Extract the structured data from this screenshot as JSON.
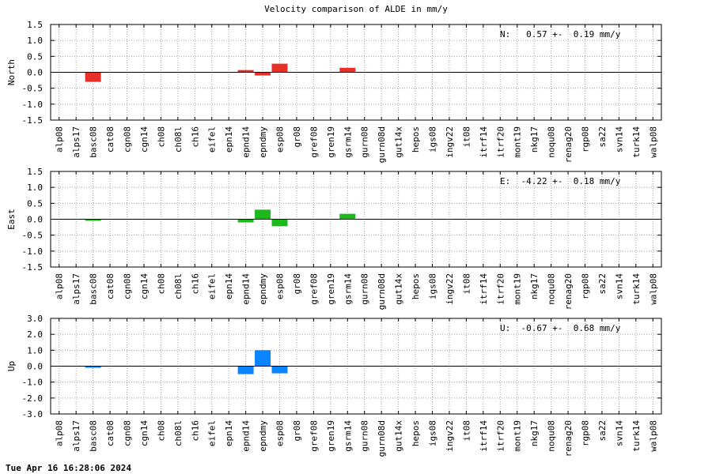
{
  "title": "Velocity comparison of ALDE in mm/y",
  "timestamp": "Tue Apr 16 16:28:06 2024",
  "chart_data": {
    "type": "bar",
    "categories": [
      "alp08",
      "alps17",
      "basc08",
      "cat08",
      "cgn08",
      "cgn14",
      "ch08",
      "ch08l",
      "ch16",
      "eifel",
      "epn14",
      "epnd14",
      "epndmy",
      "esp08",
      "gr08",
      "gref08",
      "gren19",
      "gsrm14",
      "gurn08",
      "gurn08d",
      "gut14x",
      "hepos",
      "igs08",
      "ingv22",
      "it08",
      "itrf14",
      "itrf20",
      "mont19",
      "nkg17",
      "noqu08",
      "renag20",
      "rgp08",
      "sa22",
      "svn14",
      "turk14",
      "walp08"
    ],
    "panels": [
      {
        "ylabel": "North",
        "ylim": [
          -1.5,
          1.5
        ],
        "yticks": [
          "1.5",
          "1.0",
          "0.5",
          "0.0",
          "-0.5",
          "-1.0",
          "-1.5"
        ],
        "color": "#e8302a",
        "annotation": "N:   0.57 +-  0.19 mm/y",
        "values": [
          null,
          null,
          -0.3,
          null,
          null,
          null,
          null,
          null,
          null,
          null,
          null,
          0.07,
          -0.1,
          0.27,
          null,
          null,
          null,
          0.14,
          null,
          null,
          null,
          null,
          null,
          null,
          null,
          null,
          null,
          null,
          null,
          null,
          null,
          null,
          null,
          null,
          null,
          null
        ]
      },
      {
        "ylabel": "East",
        "ylim": [
          -1.5,
          1.5
        ],
        "yticks": [
          "1.5",
          "1.0",
          "0.5",
          "0.0",
          "-0.5",
          "-1.0",
          "-1.5"
        ],
        "color": "#1cb81c",
        "annotation": "E:  -4.22 +-  0.18 mm/y",
        "values": [
          null,
          null,
          -0.05,
          null,
          null,
          null,
          null,
          null,
          null,
          null,
          null,
          -0.1,
          0.3,
          -0.22,
          null,
          null,
          null,
          0.17,
          null,
          null,
          null,
          null,
          null,
          null,
          null,
          null,
          null,
          null,
          null,
          null,
          null,
          null,
          null,
          null,
          null,
          null
        ]
      },
      {
        "ylabel": "Up",
        "ylim": [
          -3.0,
          3.0
        ],
        "yticks": [
          "3.0",
          "2.0",
          "1.0",
          "0.0",
          "-1.0",
          "-2.0",
          "-3.0"
        ],
        "color": "#0a84ff",
        "annotation": "U:  -0.67 +-  0.68 mm/y",
        "values": [
          null,
          null,
          -0.05,
          null,
          null,
          null,
          null,
          null,
          null,
          null,
          null,
          -0.5,
          1.0,
          -0.45,
          null,
          null,
          null,
          null,
          null,
          null,
          null,
          null,
          null,
          null,
          null,
          null,
          null,
          null,
          null,
          null,
          null,
          null,
          null,
          null,
          null,
          null
        ]
      }
    ]
  }
}
